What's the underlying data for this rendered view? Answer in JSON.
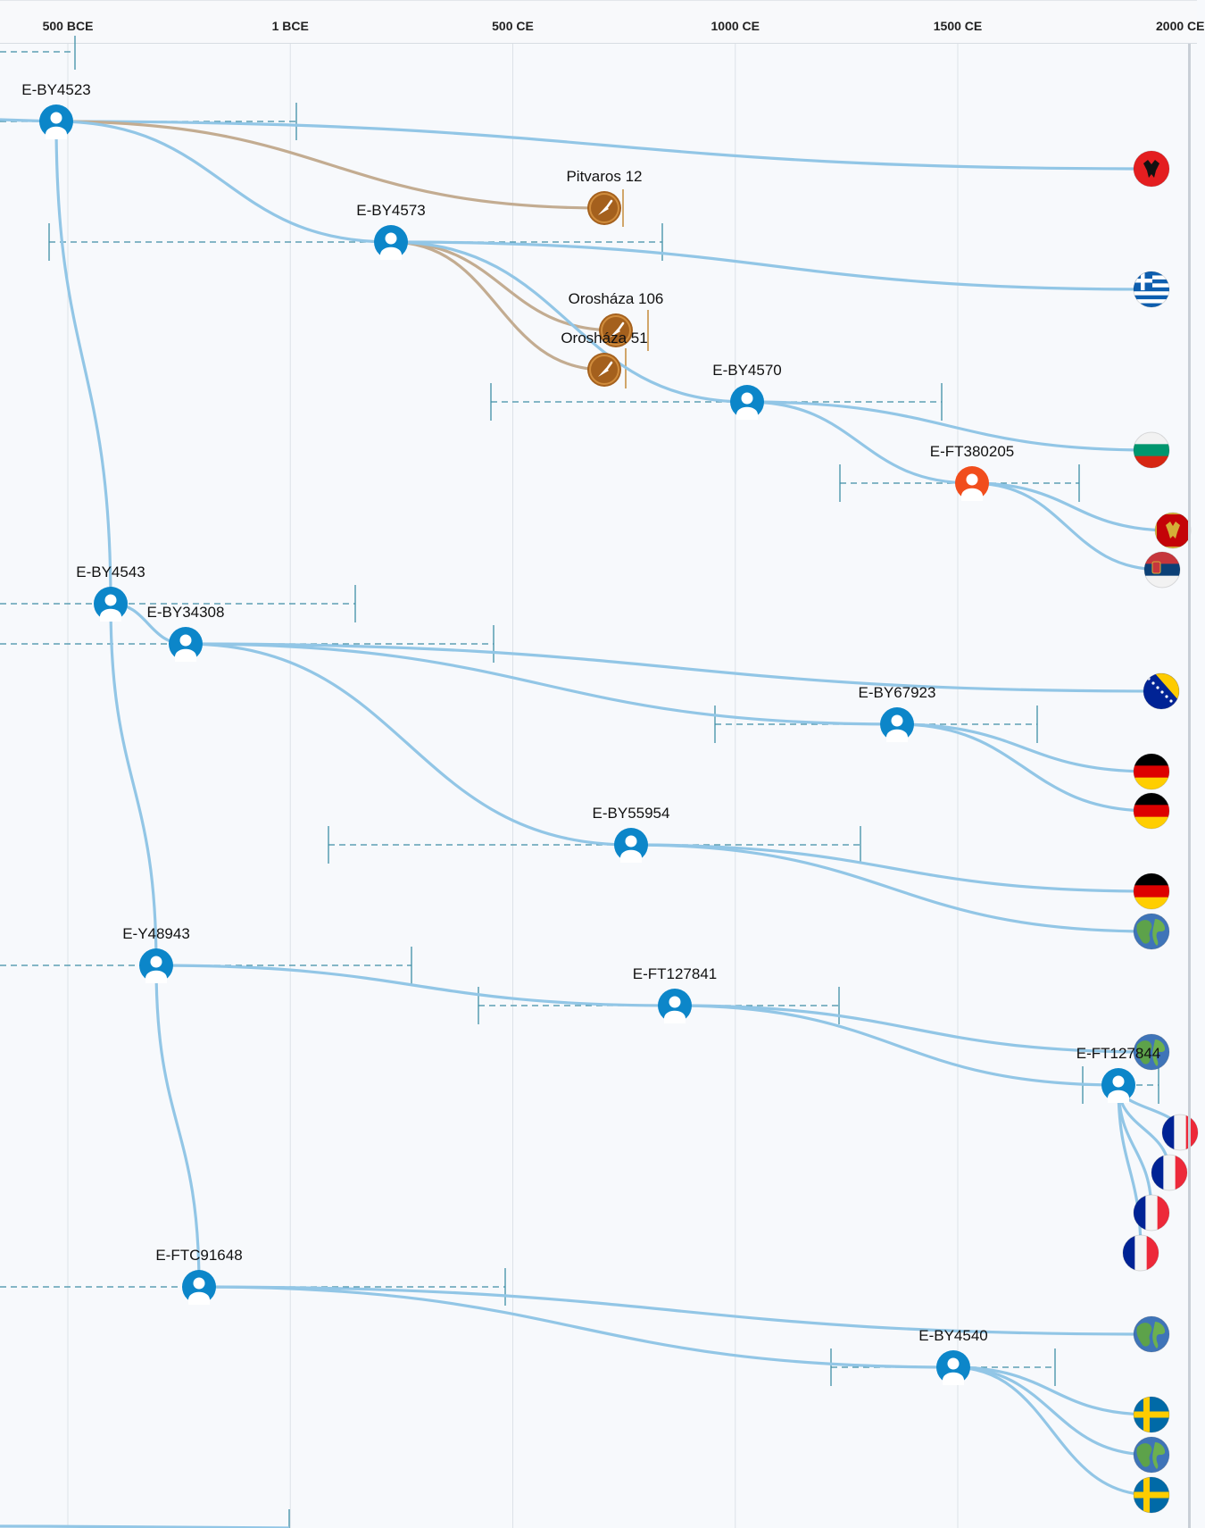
{
  "axis": {
    "ticks": [
      {
        "label": "500 BCE",
        "year": -500
      },
      {
        "label": "1 BCE",
        "year": 0
      },
      {
        "label": "500 CE",
        "year": 500
      },
      {
        "label": "1000 CE",
        "year": 1000
      },
      {
        "label": "1500 CE",
        "year": 1500
      },
      {
        "label": "2000 CE",
        "year": 2000
      }
    ]
  },
  "colors": {
    "branch": "#92c6e6",
    "ancient_link": "#c3ac91",
    "node": "#0c86c9",
    "highlight_node": "#f14d1c",
    "ancient_node": "#a4601d",
    "range": "#3f8fa6",
    "grid": "#dde2e8"
  },
  "nodes": [
    {
      "id": "E-BY4523",
      "label": "E-BY4523",
      "kind": "person"
    },
    {
      "id": "E-BY4573",
      "label": "E-BY4573",
      "kind": "person"
    },
    {
      "id": "Pitvaros 12",
      "label": "Pitvaros 12",
      "kind": "ancient"
    },
    {
      "id": "Orosháza 106",
      "label": "Orosháza 106",
      "kind": "ancient"
    },
    {
      "id": "Orosháza 51",
      "label": "Orosháza 51",
      "kind": "ancient"
    },
    {
      "id": "E-BY4570",
      "label": "E-BY4570",
      "kind": "person"
    },
    {
      "id": "E-FT380205",
      "label": "E-FT380205",
      "kind": "highlight"
    },
    {
      "id": "E-BY4543",
      "label": "E-BY4543",
      "kind": "person"
    },
    {
      "id": "E-BY34308",
      "label": "E-BY34308",
      "kind": "person"
    },
    {
      "id": "E-BY67923",
      "label": "E-BY67923",
      "kind": "person"
    },
    {
      "id": "E-BY55954",
      "label": "E-BY55954",
      "kind": "person"
    },
    {
      "id": "E-Y48943",
      "label": "E-Y48943",
      "kind": "person"
    },
    {
      "id": "E-FT127841",
      "label": "E-FT127841",
      "kind": "person"
    },
    {
      "id": "E-FT127844",
      "label": "E-FT127844",
      "kind": "person"
    },
    {
      "id": "E-FTC91648",
      "label": "E-FTC91648",
      "kind": "person"
    },
    {
      "id": "E-BY4540",
      "label": "E-BY4540",
      "kind": "person"
    }
  ],
  "leaves": [
    {
      "icon": "albania-flag-icon"
    },
    {
      "icon": "greece-flag-icon"
    },
    {
      "icon": "bulgaria-flag-icon"
    },
    {
      "icon": "montenegro-flag-icon"
    },
    {
      "icon": "serbia-flag-icon"
    },
    {
      "icon": "bosnia-flag-icon"
    },
    {
      "icon": "germany-flag-icon"
    },
    {
      "icon": "germany-flag-icon"
    },
    {
      "icon": "germany-flag-icon"
    },
    {
      "icon": "globe-icon"
    },
    {
      "icon": "globe-icon"
    },
    {
      "icon": "france-flag-icon"
    },
    {
      "icon": "france-flag-icon"
    },
    {
      "icon": "france-flag-icon"
    },
    {
      "icon": "france-flag-icon"
    },
    {
      "icon": "globe-icon"
    },
    {
      "icon": "sweden-flag-icon"
    },
    {
      "icon": "globe-icon"
    },
    {
      "icon": "sweden-flag-icon"
    }
  ]
}
